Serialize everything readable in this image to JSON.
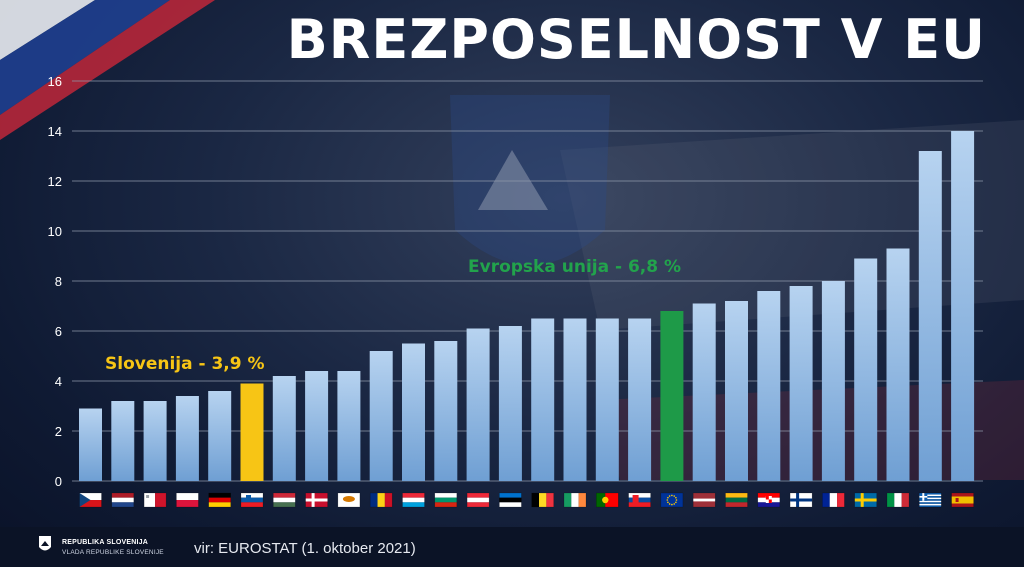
{
  "header": {
    "title": "BREZPOSELNOST V EU"
  },
  "footer": {
    "org_name": "REPUBLIKA SLOVENIJA",
    "org_sub": "VLADA REPUBLIKE SLOVENIJE",
    "source": "vir: EUROSTAT (1. oktober 2021)"
  },
  "colors": {
    "bar_default": "#8ab3de",
    "bar_slovenia": "#f7c515",
    "bar_eu": "#1e9a48",
    "label_slovenia": "#f7c515",
    "label_eu": "#22a34c",
    "grid": "#8e98aa"
  },
  "chart_data": {
    "type": "bar",
    "title": "BREZPOSELNOST V EU",
    "categories": [
      "Czech Republic",
      "Netherlands",
      "Malta",
      "Poland",
      "Germany",
      "Slovenia",
      "Hungary",
      "Denmark",
      "Cyprus",
      "Romania",
      "Luxembourg",
      "Bulgaria",
      "Austria",
      "Estonia",
      "Belgium",
      "Ireland",
      "Portugal",
      "Slovakia",
      "EU",
      "Latvia",
      "Lithuania",
      "Croatia",
      "Finland",
      "France",
      "Sweden",
      "Italy",
      "Greece",
      "Spain"
    ],
    "flags": [
      "cz",
      "nl",
      "mt",
      "pl",
      "de",
      "si",
      "hu",
      "dk",
      "cy",
      "ro",
      "lu",
      "bg",
      "at",
      "ee",
      "be",
      "ie",
      "pt",
      "sk",
      "eu",
      "lv",
      "lt",
      "hr",
      "fi",
      "fr",
      "se",
      "it",
      "gr",
      "es"
    ],
    "values": [
      2.9,
      3.2,
      3.2,
      3.4,
      3.6,
      3.9,
      4.2,
      4.4,
      4.4,
      5.2,
      5.5,
      5.6,
      6.1,
      6.2,
      6.5,
      6.5,
      6.5,
      6.5,
      6.8,
      7.1,
      7.2,
      7.6,
      7.8,
      8.0,
      8.9,
      9.3,
      13.2,
      14.0
    ],
    "highlight": {
      "Slovenia": "slovenia",
      "EU": "eu"
    },
    "ylim": [
      0,
      16
    ],
    "yticks": [
      0,
      2,
      4,
      6,
      8,
      10,
      12,
      14,
      16
    ],
    "grid": true,
    "annotations": [
      {
        "target": "Slovenia",
        "text": "Slovenija - 3,9 %"
      },
      {
        "target": "EU",
        "text": "Evropska unija - 6,8 %"
      }
    ]
  }
}
